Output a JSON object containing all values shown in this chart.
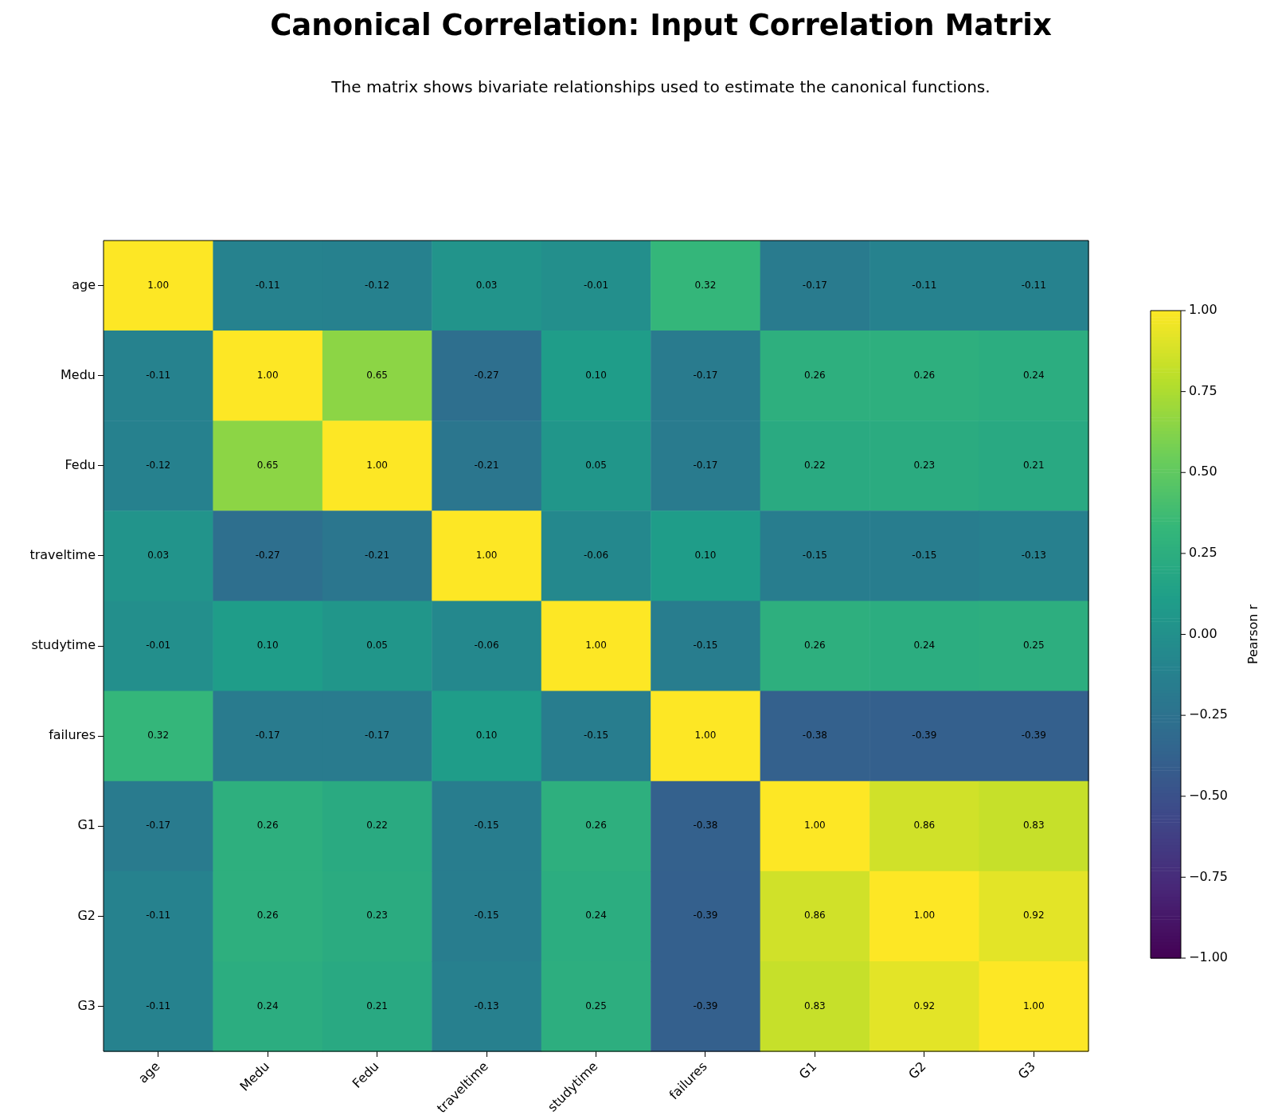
{
  "chart_data": {
    "type": "heatmap",
    "title": "Canonical Correlation: Input Correlation Matrix",
    "subtitle": "The matrix shows bivariate relationships used to estimate the canonical functions.",
    "clabel": "Pearson r",
    "categories": [
      "age",
      "Medu",
      "Fedu",
      "traveltime",
      "studytime",
      "failures",
      "G1",
      "G2",
      "G3"
    ],
    "y_categories": [
      "age",
      "Medu",
      "Fedu",
      "traveltime",
      "studytime",
      "failures",
      "G1",
      "G2",
      "G3"
    ],
    "cells": [
      [
        1.0,
        -0.11,
        -0.12,
        0.03,
        -0.01,
        0.32,
        -0.17,
        -0.11,
        -0.11
      ],
      [
        -0.11,
        1.0,
        0.65,
        -0.27,
        0.1,
        -0.17,
        0.26,
        0.26,
        0.24
      ],
      [
        -0.12,
        0.65,
        1.0,
        -0.21,
        0.05,
        -0.17,
        0.22,
        0.23,
        0.21
      ],
      [
        0.03,
        -0.27,
        -0.21,
        1.0,
        -0.06,
        0.1,
        -0.15,
        -0.15,
        -0.13
      ],
      [
        -0.01,
        0.1,
        0.05,
        -0.06,
        1.0,
        -0.15,
        0.26,
        0.24,
        0.25
      ],
      [
        0.32,
        -0.17,
        -0.17,
        0.1,
        -0.15,
        1.0,
        -0.38,
        -0.39,
        -0.39
      ],
      [
        -0.17,
        0.26,
        0.22,
        -0.15,
        0.26,
        -0.38,
        1.0,
        0.86,
        0.83
      ],
      [
        -0.11,
        0.26,
        0.23,
        -0.15,
        0.24,
        -0.39,
        0.86,
        1.0,
        0.92
      ],
      [
        -0.11,
        0.24,
        0.21,
        -0.13,
        0.25,
        -0.39,
        0.83,
        0.92,
        1.0
      ]
    ],
    "cell_labels": [
      [
        "1.00",
        "-0.11",
        "-0.12",
        "0.03",
        "-0.01",
        "0.32",
        "-0.17",
        "-0.11",
        "-0.11"
      ],
      [
        "-0.11",
        "1.00",
        "0.65",
        "-0.27",
        "0.10",
        "-0.17",
        "0.26",
        "0.26",
        "0.24"
      ],
      [
        "-0.12",
        "0.65",
        "1.00",
        "-0.21",
        "0.05",
        "-0.17",
        "0.22",
        "0.23",
        "0.21"
      ],
      [
        "0.03",
        "-0.27",
        "-0.21",
        "1.00",
        "-0.06",
        "0.10",
        "-0.15",
        "-0.15",
        "-0.13"
      ],
      [
        "-0.01",
        "0.10",
        "0.05",
        "-0.06",
        "1.00",
        "-0.15",
        "0.26",
        "0.24",
        "0.25"
      ],
      [
        "0.32",
        "-0.17",
        "-0.17",
        "0.10",
        "-0.15",
        "1.00",
        "-0.38",
        "-0.39",
        "-0.39"
      ],
      [
        "-0.17",
        "0.26",
        "0.22",
        "-0.15",
        "0.26",
        "-0.38",
        "1.00",
        "0.86",
        "0.83"
      ],
      [
        "-0.11",
        "0.26",
        "0.23",
        "-0.15",
        "0.24",
        "-0.39",
        "0.86",
        "1.00",
        "0.92"
      ],
      [
        "-0.11",
        "0.24",
        "0.21",
        "-0.13",
        "0.25",
        "-0.39",
        "0.83",
        "0.92",
        "1.00"
      ]
    ],
    "clim": [
      -1,
      1
    ],
    "cticks": [
      {
        "value": -1,
        "label": "−1.00"
      },
      {
        "value": -0.75,
        "label": "−0.75"
      },
      {
        "value": -0.5,
        "label": "−0.50"
      },
      {
        "value": -0.25,
        "label": "−0.25"
      },
      {
        "value": 0,
        "label": "0.00"
      },
      {
        "value": 0.25,
        "label": "0.25"
      },
      {
        "value": 0.5,
        "label": "0.50"
      },
      {
        "value": 0.75,
        "label": "0.75"
      },
      {
        "value": 1,
        "label": "1.00"
      }
    ]
  }
}
